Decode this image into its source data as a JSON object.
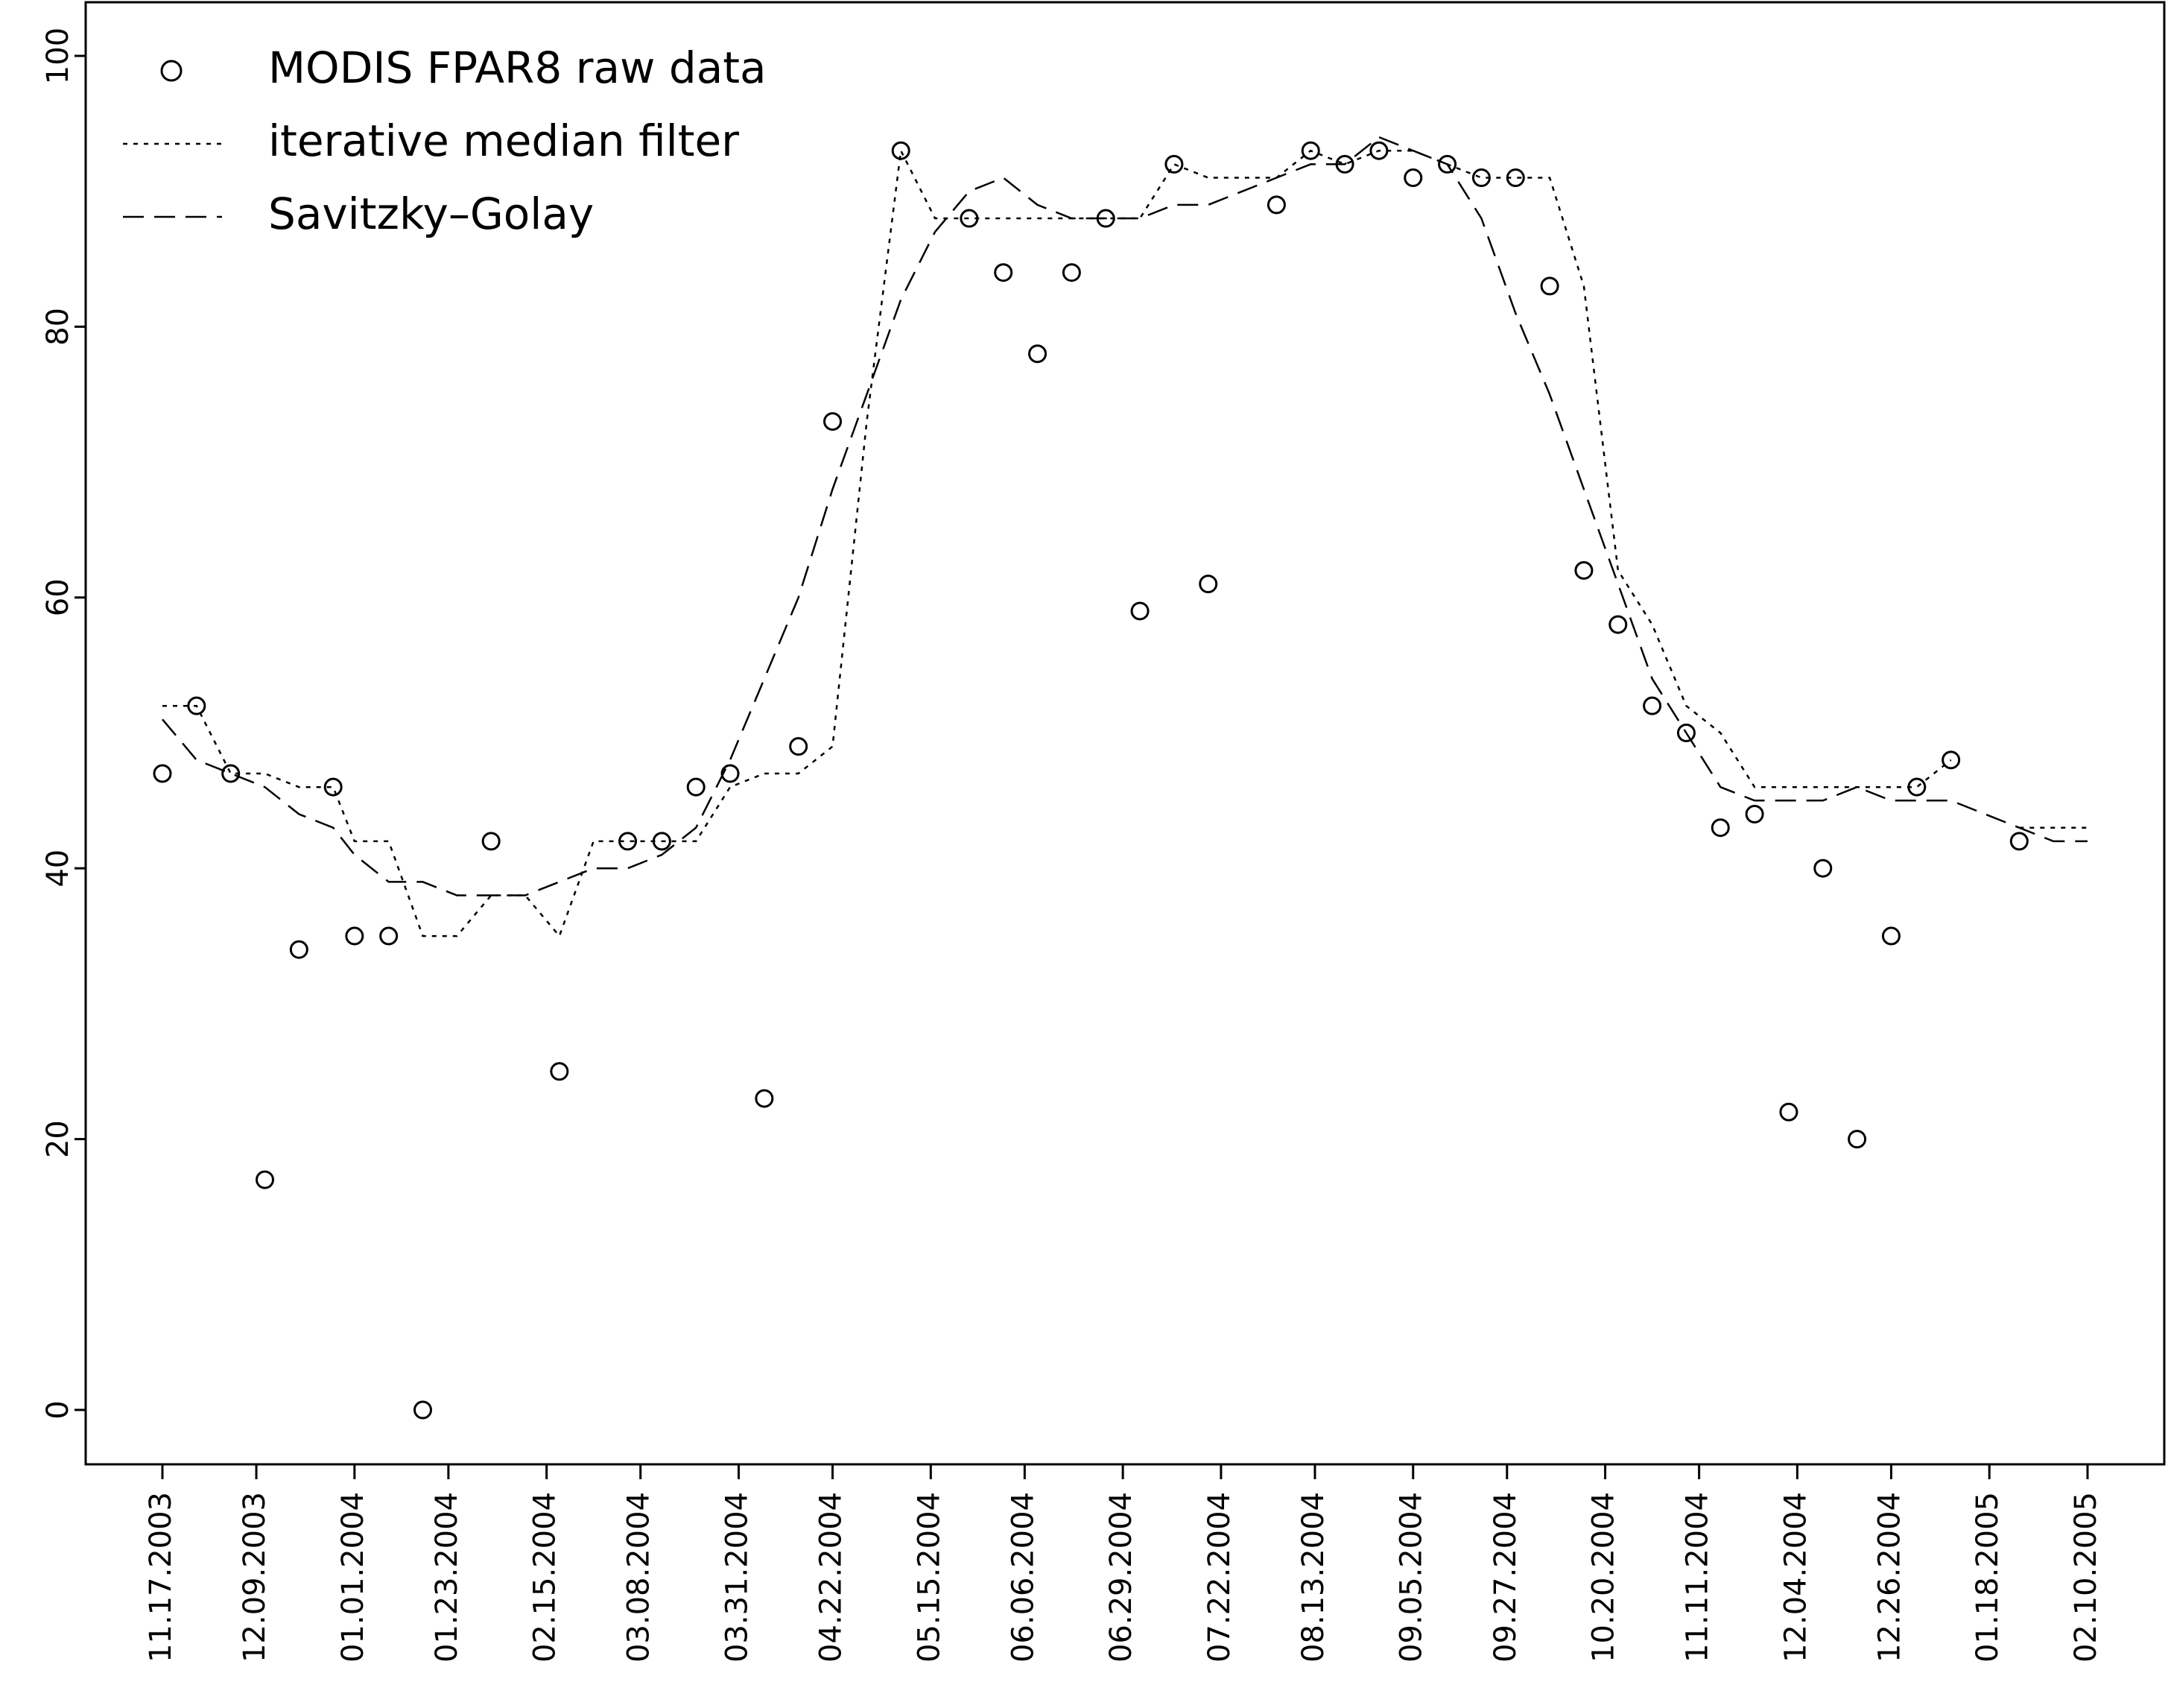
{
  "chart_data": {
    "type": "line",
    "title": "",
    "xlabel": "",
    "ylabel": "",
    "ylim": [
      -4,
      104
    ],
    "yticks": [
      0,
      20,
      40,
      60,
      80,
      100
    ],
    "xtick_labels": [
      "11.17.2003",
      "12.09.2003",
      "01.01.2004",
      "01.23.2004",
      "02.15.2004",
      "03.08.2004",
      "03.31.2004",
      "04.22.2004",
      "05.15.2004",
      "06.06.2004",
      "06.29.2004",
      "07.22.2004",
      "08.13.2004",
      "09.05.2004",
      "09.27.2004",
      "10.20.2004",
      "11.11.2004",
      "12.04.2004",
      "12.26.2004",
      "01.18.2005",
      "02.10.2005"
    ],
    "x": [
      "11.17.2003",
      "11.25.2003",
      "12.03.2003",
      "12.11.2003",
      "12.19.2003",
      "12.27.2003",
      "01.01.2004",
      "01.09.2004",
      "01.17.2004",
      "01.25.2004",
      "02.02.2004",
      "02.10.2004",
      "02.18.2004",
      "02.26.2004",
      "03.05.2004",
      "03.13.2004",
      "03.21.2004",
      "03.29.2004",
      "04.06.2004",
      "04.14.2004",
      "04.22.2004",
      "04.30.2004",
      "05.08.2004",
      "05.16.2004",
      "05.24.2004",
      "06.01.2004",
      "06.09.2004",
      "06.17.2004",
      "06.25.2004",
      "07.03.2004",
      "07.11.2004",
      "07.19.2004",
      "07.27.2004",
      "08.04.2004",
      "08.12.2004",
      "08.20.2004",
      "08.28.2004",
      "09.05.2004",
      "09.13.2004",
      "09.21.2004",
      "09.29.2004",
      "10.07.2004",
      "10.15.2004",
      "10.23.2004",
      "10.31.2004",
      "11.08.2004",
      "11.16.2004",
      "11.24.2004",
      "12.02.2004",
      "12.10.2004",
      "12.18.2004",
      "12.26.2004",
      "01.01.2005",
      "01.09.2005",
      "01.17.2005",
      "01.25.2005",
      "02.02.2005",
      "02.10.2005"
    ],
    "legend": {
      "position": "top-left",
      "entries": [
        "MODIS FPAR8 raw data",
        "iterative median filter",
        "Savitzky–Golay"
      ]
    },
    "series": [
      {
        "name": "MODIS FPAR8 raw data",
        "style": "points",
        "values": [
          47,
          52,
          47,
          17,
          34,
          46,
          35,
          35,
          0,
          null,
          42,
          null,
          25,
          null,
          42,
          42,
          46,
          47,
          23,
          49,
          73,
          null,
          93,
          null,
          88,
          84,
          78,
          84,
          88,
          59,
          92,
          61,
          null,
          89,
          93,
          92,
          93,
          91,
          92,
          91,
          91,
          83,
          62,
          58,
          52,
          50,
          43,
          44,
          22,
          40,
          20,
          35,
          46,
          48,
          null,
          42,
          null,
          null
        ]
      },
      {
        "name": "iterative median filter",
        "style": "dotted",
        "values": [
          52,
          52,
          47,
          47,
          46,
          46,
          42,
          42,
          35,
          35,
          38,
          38,
          35,
          42,
          42,
          42,
          42,
          46,
          47,
          47,
          49,
          73,
          93,
          88,
          88,
          88,
          88,
          88,
          88,
          88,
          92,
          91,
          91,
          91,
          93,
          92,
          93,
          93,
          92,
          91,
          91,
          91,
          83,
          62,
          58,
          52,
          50,
          46,
          46,
          46,
          46,
          46,
          46,
          48,
          null,
          43,
          43,
          43
        ]
      },
      {
        "name": "Savitzky–Golay",
        "style": "dashed",
        "values": [
          51,
          48,
          47,
          46,
          44,
          43,
          41,
          39,
          39,
          38,
          38,
          38,
          39,
          40,
          40,
          41,
          43,
          48,
          54,
          60,
          68,
          75,
          82,
          87,
          90,
          91,
          89,
          88,
          88,
          88,
          89,
          89,
          90,
          91,
          92,
          92,
          94,
          93,
          92,
          88,
          81,
          75,
          68,
          61,
          54,
          50,
          46,
          45,
          45,
          45,
          46,
          45,
          45,
          45,
          44,
          43,
          42,
          42
        ]
      }
    ]
  }
}
